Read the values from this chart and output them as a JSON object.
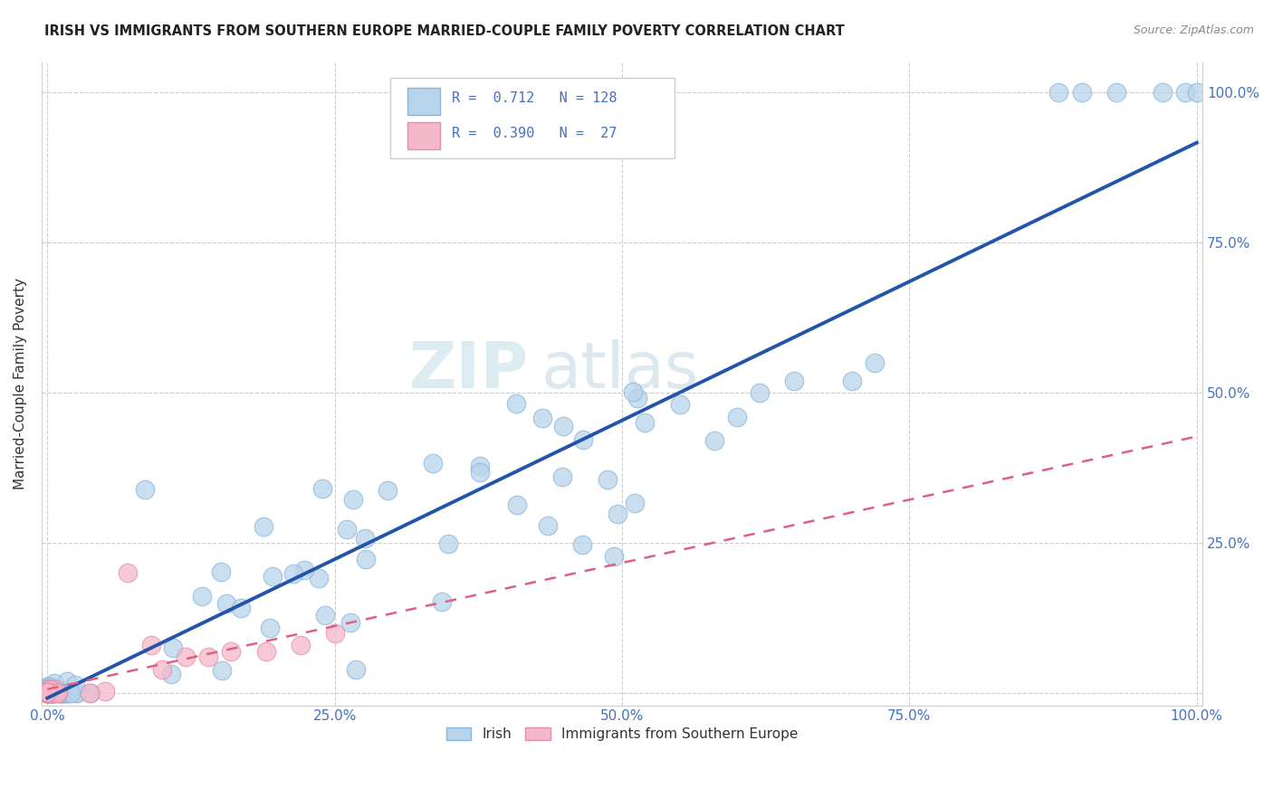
{
  "title": "IRISH VS IMMIGRANTS FROM SOUTHERN EUROPE MARRIED-COUPLE FAMILY POVERTY CORRELATION CHART",
  "source": "Source: ZipAtlas.com",
  "ylabel": "Married-Couple Family Poverty",
  "watermark_zip": "ZIP",
  "watermark_atlas": "atlas",
  "irish_color": "#b8d4ea",
  "irish_edge_color": "#8ab4d8",
  "irish_line_color": "#2255aa",
  "southern_color": "#f5b8ca",
  "southern_edge_color": "#e090a8",
  "southern_line_color": "#e06080",
  "R_irish": 0.712,
  "N_irish": 128,
  "R_south": 0.39,
  "N_south": 27,
  "grid_color": "#cccccc",
  "bg_color": "#ffffff",
  "title_color": "#222222",
  "tick_color": "#4472c4",
  "label_color": "#333333",
  "legend_value_color": "#4472c4"
}
